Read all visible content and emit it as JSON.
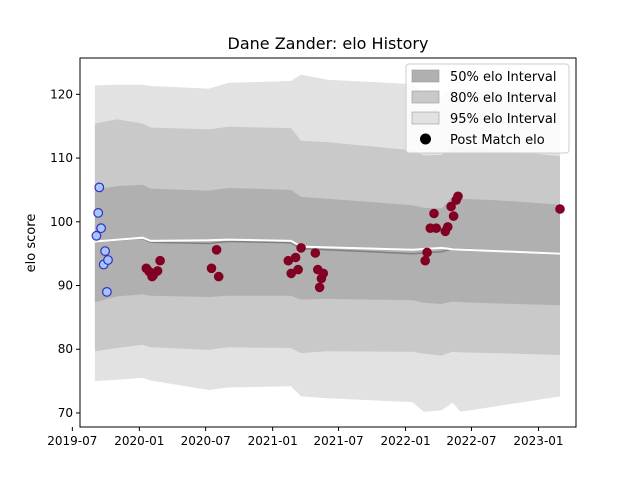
{
  "chart_data": {
    "type": "scatter",
    "title": "Dane Zander: elo History",
    "xlabel": "",
    "ylabel": "elo score",
    "xlim": [
      "2019-07-22",
      "2023-04-14"
    ],
    "ylim": [
      67.8,
      125.7
    ],
    "x_ticks": [
      "2019-07",
      "2020-01",
      "2020-07",
      "2021-01",
      "2021-07",
      "2022-01",
      "2022-07",
      "2023-01"
    ],
    "y_ticks": [
      70,
      80,
      90,
      100,
      110,
      120
    ],
    "grid": false,
    "legend_position": "upper right",
    "colors": {
      "band_50": "#b0b0b0",
      "band_80": "#c9c9c9",
      "band_95": "#e2e2e2",
      "mean_line": "#808080",
      "rating_line": "#ffffff",
      "points_early": "#a3c8ff",
      "points_early_edge": "#3a2bbf",
      "points": "#820022"
    },
    "legend": [
      {
        "label": "50% elo Interval",
        "key": "band_50",
        "kind": "patch"
      },
      {
        "label": "80% elo Interval",
        "key": "band_80",
        "kind": "patch"
      },
      {
        "label": "95% elo Interval",
        "key": "band_95",
        "kind": "patch"
      },
      {
        "label": "Post Match elo",
        "key": "legend_marker",
        "kind": "marker"
      }
    ],
    "interval_bands": {
      "x": [
        "2019-09-01",
        "2019-11-01",
        "2020-01-10",
        "2020-02-01",
        "2020-07-10",
        "2020-09-01",
        "2021-02-20",
        "2021-03-20",
        "2021-06-01",
        "2022-01-20",
        "2022-02-20",
        "2022-04-10",
        "2022-05-10",
        "2022-06-01",
        "2022-09-01",
        "2023-03-01"
      ],
      "p50_low": [
        87.4,
        88.3,
        88.6,
        88.4,
        88.2,
        88.4,
        88.4,
        87.8,
        87.9,
        87.7,
        87.3,
        87.1,
        87.5,
        87.4,
        87.2,
        86.9
      ],
      "p50_high": [
        105.0,
        105.6,
        105.8,
        105.2,
        104.9,
        105.3,
        105.0,
        103.9,
        103.6,
        102.6,
        102.2,
        102.1,
        103.9,
        103.6,
        103.4,
        102.7
      ],
      "p80_low": [
        79.7,
        80.2,
        80.7,
        80.3,
        79.9,
        80.3,
        80.2,
        79.4,
        79.7,
        79.6,
        79.3,
        79.0,
        79.6,
        79.5,
        79.4,
        79.1
      ],
      "p80_high": [
        115.4,
        116.1,
        115.4,
        114.8,
        114.5,
        114.9,
        114.7,
        112.7,
        112.5,
        111.2,
        110.4,
        110.5,
        112.1,
        111.8,
        111.3,
        110.3
      ],
      "p95_low": [
        75.0,
        75.2,
        75.5,
        75.1,
        73.6,
        74.0,
        74.2,
        72.6,
        72.3,
        71.7,
        70.2,
        70.4,
        71.6,
        70.2,
        71.0,
        72.6
      ],
      "p95_high": [
        121.4,
        121.5,
        121.5,
        121.3,
        120.9,
        121.8,
        122.1,
        123.1,
        122.3,
        121.6,
        120.3,
        119.5,
        121.1,
        120.8,
        120.4,
        119.9
      ]
    },
    "series": [
      {
        "kind": "line",
        "style": "mean",
        "x": [
          "2019-09-01",
          "2020-01-10",
          "2020-02-01",
          "2020-07-10",
          "2020-09-01",
          "2021-02-20",
          "2021-03-20",
          "2022-01-20",
          "2022-04-10",
          "2022-05-10",
          "2023-03-01"
        ],
        "y": [
          96.9,
          97.4,
          96.8,
          96.6,
          96.9,
          96.7,
          95.8,
          95.0,
          95.3,
          95.8,
          94.9
        ]
      },
      {
        "kind": "line",
        "style": "rating",
        "x": [
          "2019-09-01",
          "2020-01-10",
          "2020-02-01",
          "2020-07-10",
          "2020-09-01",
          "2021-02-20",
          "2021-03-20",
          "2022-01-20",
          "2022-04-10",
          "2022-05-10",
          "2023-03-01"
        ],
        "y": [
          96.9,
          97.5,
          97.0,
          97.1,
          97.2,
          97.0,
          96.1,
          95.6,
          95.9,
          95.7,
          95.0
        ]
      },
      {
        "kind": "scatter",
        "style": "early",
        "x": [
          "2019-09-05",
          "2019-09-10",
          "2019-09-13",
          "2019-09-18",
          "2019-09-25",
          "2019-09-29",
          "2019-10-04",
          "2019-10-07"
        ],
        "y": [
          97.8,
          101.4,
          105.4,
          99.0,
          93.3,
          95.4,
          89.0,
          94.0
        ]
      },
      {
        "kind": "scatter",
        "style": "match",
        "x": [
          "2020-01-20",
          "2020-01-28",
          "2020-02-05",
          "2020-02-08",
          "2020-02-20",
          "2020-02-27",
          "2020-07-17",
          "2020-07-31",
          "2020-08-06",
          "2021-02-13",
          "2021-02-21",
          "2021-03-05",
          "2021-03-12",
          "2021-03-20",
          "2021-04-28",
          "2021-05-05",
          "2021-05-10",
          "2021-05-15",
          "2021-05-20",
          "2022-02-24",
          "2022-03-01",
          "2022-03-10",
          "2022-03-20",
          "2022-03-26",
          "2022-04-20",
          "2022-04-27",
          "2022-05-06",
          "2022-05-13",
          "2022-05-20",
          "2022-05-25",
          "2023-03-01"
        ],
        "y": [
          92.7,
          92.2,
          91.4,
          91.6,
          92.3,
          93.9,
          92.7,
          95.6,
          91.4,
          93.9,
          91.9,
          94.4,
          92.5,
          95.9,
          95.1,
          92.5,
          89.7,
          91.1,
          91.9,
          93.9,
          95.2,
          99.0,
          101.3,
          99.0,
          98.5,
          99.2,
          102.4,
          100.9,
          103.4,
          104.0,
          102.0
        ]
      }
    ]
  }
}
